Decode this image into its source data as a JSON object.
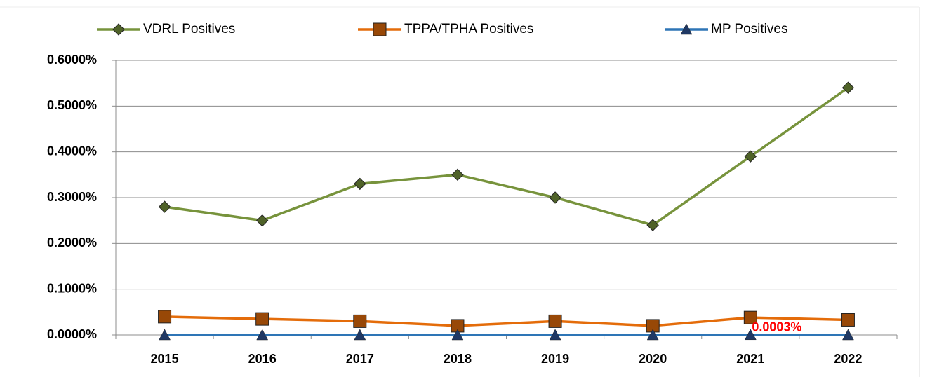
{
  "chart_data": {
    "type": "line",
    "categories": [
      "2015",
      "2016",
      "2017",
      "2018",
      "2019",
      "2020",
      "2021",
      "2022"
    ],
    "series": [
      {
        "name": "VDRL Positives",
        "color": "#77933c",
        "marker": "diamond",
        "marker_color": "#4f6228",
        "values": [
          0.28,
          0.25,
          0.33,
          0.35,
          0.3,
          0.24,
          0.39,
          0.54
        ]
      },
      {
        "name": "TPPA/TPHA Positives",
        "color": "#e46c0a",
        "marker": "square",
        "marker_color": "#984807",
        "values": [
          0.04,
          0.035,
          0.03,
          0.02,
          0.03,
          0.02,
          0.038,
          0.033
        ]
      },
      {
        "name": "MP Positives",
        "color": "#2e75b6",
        "marker": "triangle",
        "marker_color": "#1f3864",
        "values": [
          0,
          0,
          0,
          0,
          0,
          0,
          0.0003,
          0
        ],
        "value_labels": [
          null,
          null,
          null,
          null,
          null,
          null,
          "0.0003%",
          null
        ],
        "value_label_color": "#ff0000"
      }
    ],
    "ylim": [
      0,
      0.6
    ],
    "yticks": [
      {
        "value": 0,
        "label": "0.0000%"
      },
      {
        "value": 0.1,
        "label": "0.1000%"
      },
      {
        "value": 0.2,
        "label": "0.2000%"
      },
      {
        "value": 0.3,
        "label": "0.3000%"
      },
      {
        "value": 0.4,
        "label": "0.4000%"
      },
      {
        "value": 0.5,
        "label": "0.5000%"
      },
      {
        "value": 0.6,
        "label": "0.6000%"
      }
    ],
    "grid": true,
    "legend": "top"
  }
}
